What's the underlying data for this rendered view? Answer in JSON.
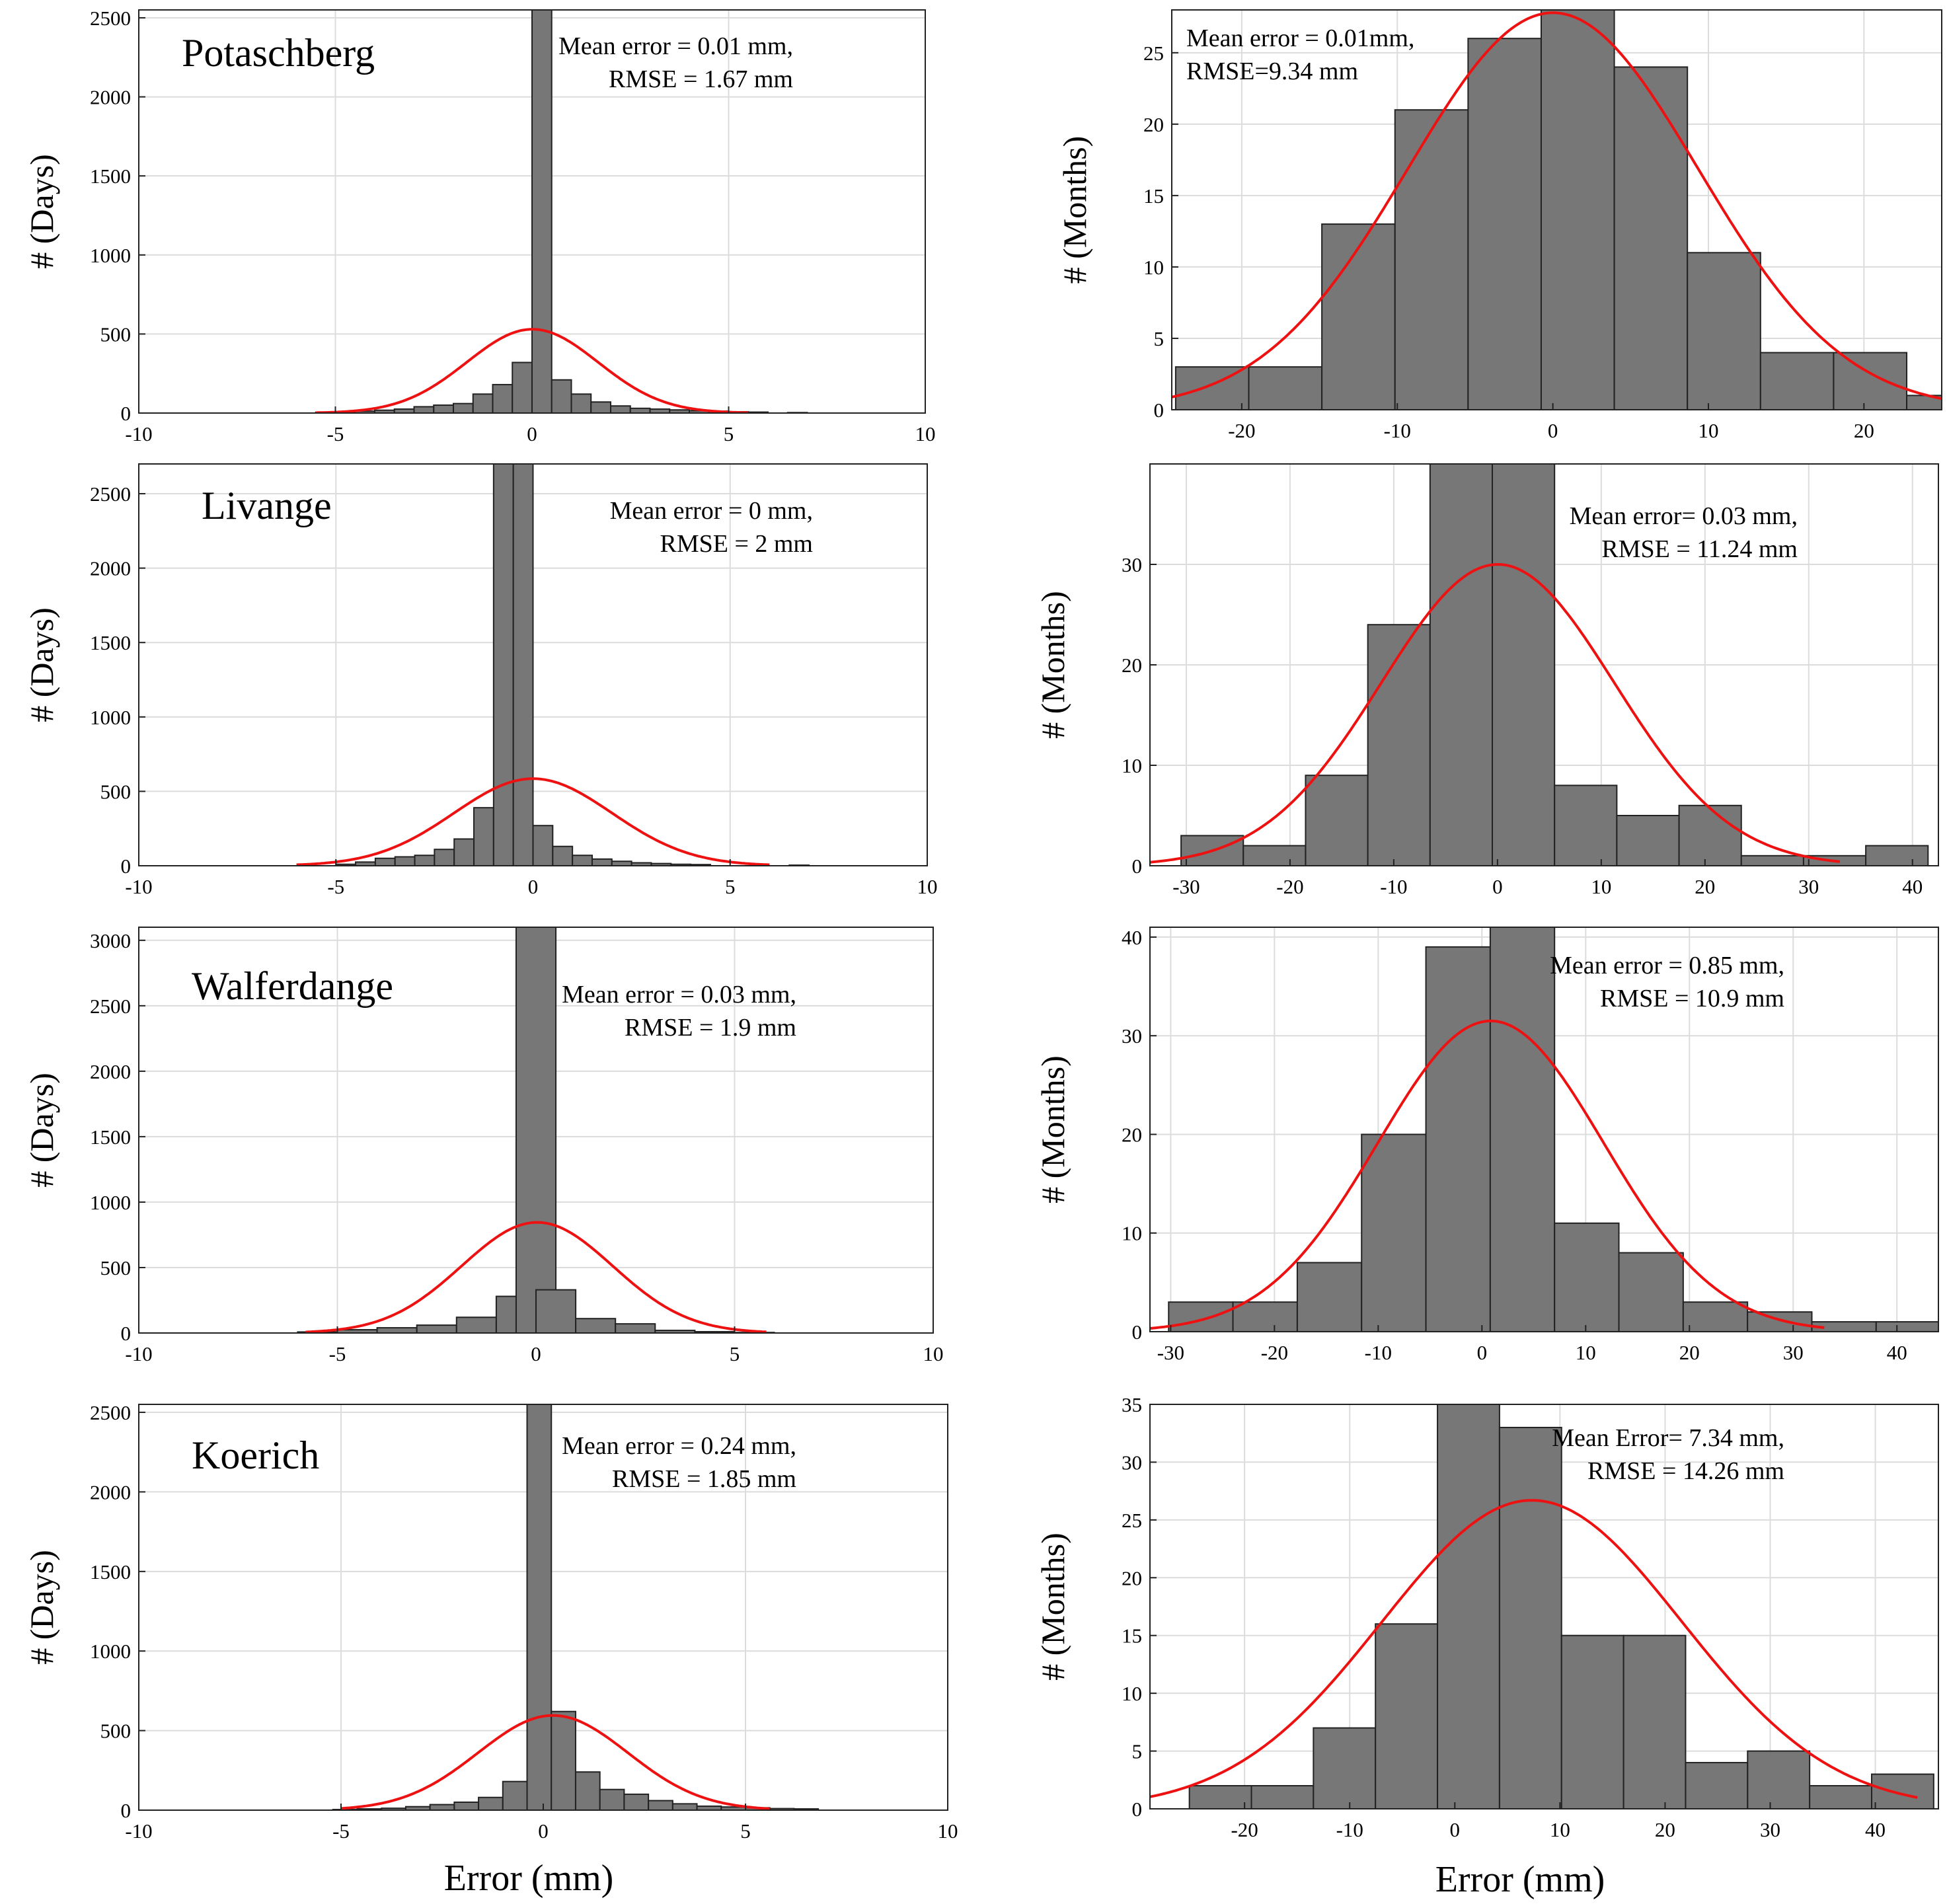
{
  "figure": {
    "xlabel_left": "Error (mm)",
    "xlabel_right": "Error (mm)"
  },
  "chart_data": [
    {
      "type": "bar",
      "station": "Potaschberg",
      "ylabel": "# (Days)",
      "xlabel": "",
      "xlim": [
        -10,
        10
      ],
      "ylim": [
        0,
        2550
      ],
      "xticks": [
        -10,
        -5,
        0,
        5,
        10
      ],
      "yticks": [
        0,
        500,
        1000,
        1500,
        2000,
        2500
      ],
      "bin_width": 0.5,
      "bins": [
        [
          -5.25,
          5
        ],
        [
          -4.75,
          8
        ],
        [
          -4.25,
          12
        ],
        [
          -3.75,
          18
        ],
        [
          -3.25,
          25
        ],
        [
          -2.75,
          40
        ],
        [
          -2.25,
          50
        ],
        [
          -1.75,
          60
        ],
        [
          -1.25,
          120
        ],
        [
          -0.75,
          180
        ],
        [
          -0.25,
          320
        ],
        [
          0.25,
          2550
        ],
        [
          0.75,
          210
        ],
        [
          1.25,
          120
        ],
        [
          1.75,
          70
        ],
        [
          2.25,
          45
        ],
        [
          2.75,
          30
        ],
        [
          3.25,
          25
        ],
        [
          3.75,
          20
        ],
        [
          4.25,
          15
        ],
        [
          4.75,
          12
        ],
        [
          5.25,
          8
        ],
        [
          5.75,
          6
        ],
        [
          6.75,
          3
        ]
      ],
      "fit": {
        "mean": 0.01,
        "sigma": 1.67,
        "peak": 530,
        "range": [
          -5.5,
          5.5
        ]
      },
      "annotation": [
        "Mean error = 0.01 mm,",
        "RMSE = 1.67 mm"
      ],
      "grid": true
    },
    {
      "type": "bar",
      "station": "",
      "ylabel": "# (Months)",
      "xlabel": "",
      "xlim": [
        -24.5,
        25
      ],
      "ylim": [
        0,
        28
      ],
      "xticks": [
        -20,
        -10,
        0,
        10,
        20
      ],
      "yticks": [
        0,
        5,
        10,
        15,
        20,
        25
      ],
      "bin_width": 4.7,
      "bins": [
        [
          -21.9,
          3
        ],
        [
          -17.2,
          3
        ],
        [
          -12.5,
          13
        ],
        [
          -7.8,
          21
        ],
        [
          -3.1,
          26
        ],
        [
          1.6,
          28
        ],
        [
          6.3,
          24
        ],
        [
          11.0,
          11
        ],
        [
          15.7,
          4
        ],
        [
          20.4,
          4
        ],
        [
          25.1,
          1
        ]
      ],
      "fit": {
        "mean": 0.01,
        "sigma": 9.34,
        "peak": 27.8,
        "range": [
          -24.5,
          25
        ]
      },
      "annotation": [
        "Mean error = 0.01mm,",
        "RMSE=9.34 mm"
      ],
      "grid": true
    },
    {
      "type": "bar",
      "station": "Livange",
      "ylabel": "# (Days)",
      "xlabel": "",
      "xlim": [
        -10,
        10
      ],
      "ylim": [
        0,
        2700
      ],
      "xticks": [
        -10,
        -5,
        0,
        5,
        10
      ],
      "yticks": [
        0,
        500,
        1000,
        1500,
        2000,
        2500
      ],
      "bin_width": 0.5,
      "bins": [
        [
          -4.75,
          10
        ],
        [
          -4.25,
          25
        ],
        [
          -3.75,
          50
        ],
        [
          -3.25,
          60
        ],
        [
          -2.75,
          70
        ],
        [
          -2.25,
          110
        ],
        [
          -1.75,
          180
        ],
        [
          -1.25,
          390
        ],
        [
          -0.75,
          2700
        ],
        [
          -0.25,
          2700
        ],
        [
          0.25,
          270
        ],
        [
          0.75,
          130
        ],
        [
          1.25,
          70
        ],
        [
          1.75,
          45
        ],
        [
          2.25,
          30
        ],
        [
          2.75,
          20
        ],
        [
          3.25,
          15
        ],
        [
          3.75,
          10
        ],
        [
          4.25,
          8
        ],
        [
          6.75,
          4
        ]
      ],
      "fit": {
        "mean": 0.0,
        "sigma": 2.0,
        "peak": 585,
        "range": [
          -6,
          6
        ]
      },
      "annotation": [
        "Mean error = 0 mm,",
        "RMSE = 2 mm"
      ],
      "grid": true
    },
    {
      "type": "bar",
      "station": "",
      "ylabel": "# (Months)",
      "xlabel": "",
      "xlim": [
        -33.5,
        42.5
      ],
      "ylim": [
        0,
        40
      ],
      "xticks": [
        -30,
        -20,
        -10,
        0,
        10,
        20,
        30,
        40
      ],
      "yticks": [
        0,
        10,
        20,
        30
      ],
      "bin_width": 6.0,
      "bins": [
        [
          -27.5,
          3
        ],
        [
          -21.5,
          2
        ],
        [
          -15.5,
          9
        ],
        [
          -9.5,
          24
        ],
        [
          -3.5,
          40
        ],
        [
          2.5,
          40
        ],
        [
          8.5,
          8
        ],
        [
          14.5,
          5
        ],
        [
          20.5,
          6
        ],
        [
          26.5,
          1
        ],
        [
          32.5,
          1
        ],
        [
          38.5,
          2
        ]
      ],
      "fit": {
        "mean": 0.03,
        "sigma": 11.24,
        "peak": 30,
        "range": [
          -33.5,
          33
        ]
      },
      "annotation": [
        "Mean error= 0.03 mm,",
        "RMSE = 11.24 mm"
      ],
      "grid": true
    },
    {
      "type": "bar",
      "station": "Walferdange",
      "ylabel": "# (Days)",
      "xlabel": "",
      "xlim": [
        -10,
        10
      ],
      "ylim": [
        0,
        3100
      ],
      "xticks": [
        -10,
        -5,
        0,
        5,
        10
      ],
      "yticks": [
        0,
        500,
        1000,
        1500,
        2000,
        2500,
        3000
      ],
      "bin_width": 1.0,
      "bins": [
        [
          -5.5,
          8
        ],
        [
          -4.5,
          25
        ],
        [
          -3.5,
          40
        ],
        [
          -2.5,
          60
        ],
        [
          -1.5,
          120
        ],
        [
          -0.5,
          280
        ],
        [
          0.0,
          3100
        ],
        [
          0.5,
          330
        ],
        [
          1.5,
          110
        ],
        [
          2.5,
          70
        ],
        [
          3.5,
          20
        ],
        [
          4.5,
          10
        ],
        [
          5.5,
          4
        ]
      ],
      "fit": {
        "mean": 0.03,
        "sigma": 1.9,
        "peak": 845,
        "range": [
          -5.8,
          5.8
        ]
      },
      "annotation": [
        "Mean error = 0.03 mm,",
        "RMSE = 1.9 mm"
      ],
      "grid": true
    },
    {
      "type": "bar",
      "station": "",
      "ylabel": "# (Months)",
      "xlabel": "",
      "xlim": [
        -32,
        44
      ],
      "ylim": [
        0,
        41
      ],
      "xticks": [
        -30,
        -20,
        -10,
        0,
        10,
        20,
        30,
        40
      ],
      "yticks": [
        0,
        10,
        20,
        30,
        40
      ],
      "bin_width": 6.2,
      "bins": [
        [
          -27.1,
          3
        ],
        [
          -20.9,
          3
        ],
        [
          -14.7,
          7
        ],
        [
          -8.5,
          20
        ],
        [
          -2.3,
          39
        ],
        [
          3.9,
          41
        ],
        [
          10.1,
          11
        ],
        [
          16.3,
          8
        ],
        [
          22.5,
          3
        ],
        [
          28.7,
          2
        ],
        [
          34.9,
          1
        ],
        [
          41.1,
          1
        ]
      ],
      "fit": {
        "mean": 0.85,
        "sigma": 10.9,
        "peak": 31.5,
        "range": [
          -32,
          33
        ]
      },
      "annotation": [
        "Mean error = 0.85 mm,",
        "RMSE = 10.9 mm"
      ],
      "grid": true
    },
    {
      "type": "bar",
      "station": "Koerich",
      "ylabel": "# (Days)",
      "xlabel": "Error (mm)",
      "xlim": [
        -10,
        10
      ],
      "ylim": [
        0,
        2550
      ],
      "xticks": [
        -10,
        -5,
        0,
        5,
        10
      ],
      "yticks": [
        0,
        500,
        1000,
        1500,
        2000,
        2500
      ],
      "bin_width": 0.6,
      "bins": [
        [
          -4.9,
          4
        ],
        [
          -4.3,
          8
        ],
        [
          -3.7,
          12
        ],
        [
          -3.1,
          22
        ],
        [
          -2.5,
          35
        ],
        [
          -1.9,
          50
        ],
        [
          -1.3,
          80
        ],
        [
          -0.7,
          180
        ],
        [
          -0.1,
          2550
        ],
        [
          0.5,
          620
        ],
        [
          1.1,
          240
        ],
        [
          1.7,
          130
        ],
        [
          2.3,
          100
        ],
        [
          2.9,
          60
        ],
        [
          3.5,
          40
        ],
        [
          4.1,
          25
        ],
        [
          4.7,
          20
        ],
        [
          5.3,
          15
        ],
        [
          5.9,
          10
        ],
        [
          6.5,
          8
        ]
      ],
      "fit": {
        "mean": 0.24,
        "sigma": 1.85,
        "peak": 595,
        "range": [
          -5,
          5.6
        ]
      },
      "annotation": [
        "Mean error = 0.24 mm,",
        "RMSE = 1.85 mm"
      ],
      "grid": true
    },
    {
      "type": "bar",
      "station": "",
      "ylabel": "# (Months)",
      "xlabel": "Error (mm)",
      "xlim": [
        -29,
        46
      ],
      "ylim": [
        0,
        35
      ],
      "xticks": [
        -20,
        -10,
        0,
        10,
        20,
        30,
        40
      ],
      "yticks": [
        0,
        5,
        10,
        15,
        20,
        25,
        30,
        35
      ],
      "bin_width": 5.9,
      "bins": [
        [
          -22.3,
          2
        ],
        [
          -16.4,
          2
        ],
        [
          -10.5,
          7
        ],
        [
          -4.6,
          16
        ],
        [
          1.3,
          35
        ],
        [
          7.2,
          33
        ],
        [
          13.1,
          15
        ],
        [
          19.0,
          15
        ],
        [
          24.9,
          4
        ],
        [
          30.8,
          5
        ],
        [
          36.7,
          2
        ],
        [
          42.6,
          3
        ]
      ],
      "fit": {
        "mean": 7.34,
        "sigma": 14.26,
        "peak": 26.7,
        "range": [
          -29,
          44
        ]
      },
      "annotation": [
        "Mean Error= 7.34 mm,",
        "RMSE = 14.26 mm"
      ],
      "grid": true
    }
  ]
}
